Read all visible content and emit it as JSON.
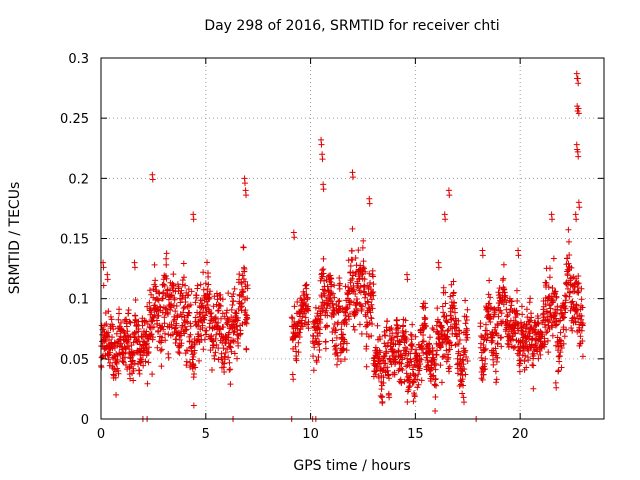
{
  "chart_data": {
    "type": "scatter",
    "title": "Day 298 of 2016, SRMTID for receiver chti",
    "xlabel": "GPS time / hours",
    "ylabel": "SRMTID / TECUs",
    "xlim": [
      0,
      24
    ],
    "ylim": [
      0,
      0.3
    ],
    "xticks": [
      0,
      5,
      10,
      15,
      20
    ],
    "xtick_labels": [
      "0",
      "5",
      "10",
      "15",
      "20"
    ],
    "yticks": [
      0,
      0.05,
      0.1,
      0.15,
      0.2,
      0.25,
      0.3
    ],
    "ytick_labels": [
      "0",
      "0.05",
      "0.1",
      "0.15",
      "0.2",
      "0.25",
      "0.3"
    ],
    "grid": true,
    "marker": "+",
    "series": [
      {
        "name": "SRMTID",
        "color": "#e00000",
        "segments": [
          {
            "start": 0.0,
            "end": 2.2,
            "base": 0.065,
            "spread": 0.03,
            "peaks": [
              [
                0.1,
                0.13
              ],
              [
                0.3,
                0.12
              ],
              [
                1.6,
                0.13
              ]
            ]
          },
          {
            "start": 2.2,
            "end": 7.0,
            "base": 0.08,
            "spread": 0.04,
            "peaks": [
              [
                2.45,
                0.203
              ],
              [
                4.4,
                0.17
              ],
              [
                6.85,
                0.2
              ],
              [
                6.9,
                0.19
              ]
            ]
          },
          {
            "start": 9.1,
            "end": 9.9,
            "base": 0.08,
            "spread": 0.025,
            "peaks": [
              [
                9.2,
                0.155
              ],
              [
                9.15,
                0.037
              ]
            ]
          },
          {
            "start": 10.1,
            "end": 13.0,
            "base": 0.085,
            "spread": 0.035,
            "peaks": [
              [
                10.5,
                0.232
              ],
              [
                10.55,
                0.22
              ],
              [
                10.6,
                0.195
              ],
              [
                12.0,
                0.205
              ],
              [
                12.8,
                0.183
              ]
            ]
          },
          {
            "start": 13.0,
            "end": 16.2,
            "base": 0.05,
            "spread": 0.03,
            "peaks": [
              [
                14.6,
                0.12
              ],
              [
                16.1,
                0.13
              ]
            ]
          },
          {
            "start": 16.2,
            "end": 17.5,
            "base": 0.065,
            "spread": 0.035,
            "peaks": [
              [
                16.6,
                0.19
              ],
              [
                16.4,
                0.17
              ],
              [
                17.3,
                0.018
              ]
            ]
          },
          {
            "start": 18.1,
            "end": 21.2,
            "base": 0.07,
            "spread": 0.03,
            "peaks": [
              [
                18.2,
                0.14
              ],
              [
                19.9,
                0.14
              ]
            ]
          },
          {
            "start": 21.2,
            "end": 23.0,
            "base": 0.09,
            "spread": 0.035,
            "peaks": [
              [
                21.5,
                0.17
              ],
              [
                22.7,
                0.287
              ],
              [
                22.75,
                0.283
              ],
              [
                22.72,
                0.26
              ],
              [
                22.78,
                0.258
              ],
              [
                22.7,
                0.228
              ],
              [
                22.75,
                0.222
              ],
              [
                22.8,
                0.18
              ],
              [
                22.65,
                0.17
              ],
              [
                21.7,
                0.03
              ]
            ]
          }
        ],
        "zero_points": [
          2.0,
          2.2,
          6.3,
          9.1,
          10.1,
          10.25,
          17.9
        ]
      }
    ]
  }
}
